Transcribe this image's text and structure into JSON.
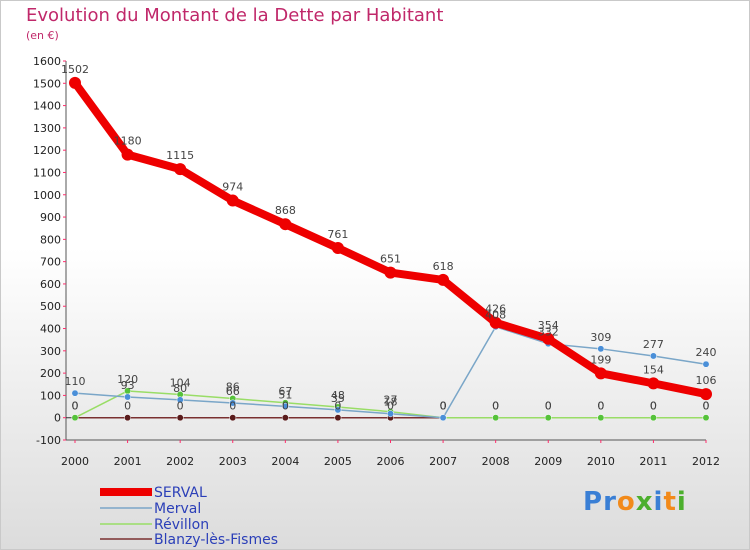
{
  "header": {
    "title": "Evolution du Montant de la Dette par Habitant",
    "unit": "(en €)"
  },
  "logo": {
    "text": "Proxiti",
    "letters": [
      "P",
      "r",
      "o",
      "x",
      "i",
      "t",
      "i"
    ],
    "colors": [
      "#3a7fd5",
      "#3a7fd5",
      "#f28a1a",
      "#4caf2d",
      "#3a7fd5",
      "#f28a1a",
      "#4caf2d"
    ]
  },
  "chart_data": {
    "type": "line",
    "title": "Evolution du Montant de la Dette par Habitant",
    "ylabel": "(en €)",
    "xlabel": "",
    "x": [
      "2000",
      "2001",
      "2002",
      "2003",
      "2004",
      "2005",
      "2006",
      "2007",
      "2008",
      "2009",
      "2010",
      "2011",
      "2012"
    ],
    "ylim": [
      -100,
      1600
    ],
    "yticks": [
      -100,
      0,
      100,
      200,
      300,
      400,
      500,
      600,
      700,
      800,
      900,
      1000,
      1100,
      1200,
      1300,
      1400,
      1500,
      1600
    ],
    "grid": false,
    "legend_position": "bottom-left",
    "series": [
      {
        "name": "SERVAL",
        "color": "#ee0000",
        "values": [
          1502,
          1180,
          1115,
          974,
          868,
          761,
          651,
          618,
          426,
          354,
          199,
          154,
          106
        ]
      },
      {
        "name": "Merval",
        "color": "#7aa6c8",
        "values": [
          110,
          93,
          80,
          66,
          51,
          35,
          18,
          0,
          408,
          332,
          309,
          277,
          240
        ]
      },
      {
        "name": "Révillon",
        "color": "#99dd66",
        "values": [
          0,
          120,
          104,
          86,
          67,
          48,
          27,
          0,
          0,
          0,
          0,
          0,
          0
        ]
      },
      {
        "name": "Blanzy-lès-Fismes",
        "color": "#7a3030",
        "values": [
          0,
          0,
          0,
          0,
          0,
          0,
          0,
          0,
          0,
          0,
          0,
          0,
          0
        ]
      }
    ]
  }
}
